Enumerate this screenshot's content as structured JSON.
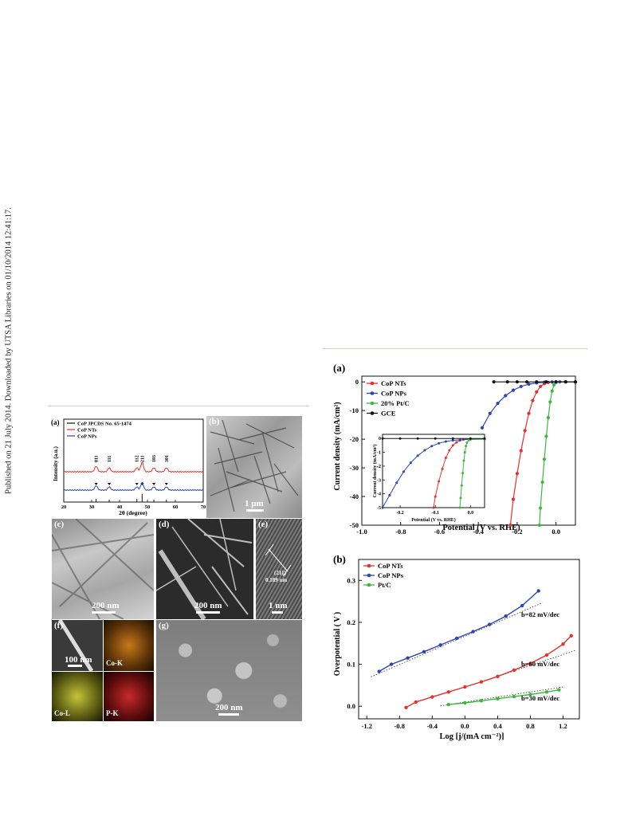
{
  "side_note": "Published on 21 July 2014. Downloaded by UTSA Libraries on 01/10/2014 12:41:17.",
  "figure1": {
    "xrd": {
      "tag": "(a)",
      "legend": [
        "CoP JPCDS No. 65-1474",
        "CoP NTs",
        "CoP NPs"
      ],
      "ylabel": "Intensity (a.u.)",
      "xlabel": "2θ (degree)",
      "xticks": [
        "20",
        "30",
        "40",
        "50",
        "60",
        "70"
      ],
      "peaks": [
        "011",
        "111",
        "112",
        "211",
        "103",
        "301"
      ]
    },
    "panels": {
      "b": {
        "tag": "(b)",
        "scale": "1 μm"
      },
      "c": {
        "tag": "(c)",
        "scale": "200 nm"
      },
      "d": {
        "tag": "(d)",
        "scale": "200 nm"
      },
      "e": {
        "tag": "(e)",
        "scale": "1 nm",
        "lattice1": "(211)",
        "lattice2": "0.189 nm"
      },
      "f": {
        "tag": "(f)",
        "scale": "100 nm",
        "map1": "Co-K",
        "map2": "Co-L",
        "map3": "P-K"
      },
      "g": {
        "tag": "(g)",
        "scale": "200 nm"
      }
    }
  },
  "figure2": {
    "lsv": {
      "tag": "(a)",
      "ylabel": "Current density (mA/cm²)",
      "xlabel": "Potential (V vs. RHE)",
      "xticks": [
        "-1.0",
        "-0.8",
        "-0.6",
        "-0.4",
        "-0.2",
        "0.0"
      ],
      "yticks": [
        "0",
        "-10",
        "-20",
        "-30",
        "-40",
        "-50"
      ],
      "legend": [
        "CoP NTs",
        "CoP NPs",
        "20% Pt/C",
        "GCE"
      ],
      "inset": {
        "ylabel": "Current density (mA/cm²)",
        "xlabel": "Potential (V vs. RHE)",
        "xticks": [
          "-0.2",
          "-0.1",
          "0.0"
        ],
        "yticks": [
          "0",
          "-1",
          "-2",
          "-3",
          "-4",
          "-5"
        ]
      }
    },
    "tafel": {
      "tag": "(b)",
      "ylabel": "Overpotential ( V )",
      "xlabel": "Log [j/(mA cm⁻²)]",
      "xticks": [
        "-1.2",
        "-0.8",
        "-0.4",
        "0.0",
        "0.4",
        "0.8",
        "1.2"
      ],
      "yticks": [
        "0.0",
        "0.1",
        "0.2",
        "0.3"
      ],
      "legend": [
        "CoP NTs",
        "CoP NPs",
        "Pt/C"
      ],
      "slopes": [
        "b=82 mV/dec",
        "b=60 mV/dec",
        "b=30 mV/dec"
      ]
    }
  },
  "colors": {
    "red": "#e8302a",
    "blue": "#2d44b8",
    "green": "#3cb83c",
    "black": "#111111"
  },
  "chart_data": [
    {
      "type": "line",
      "title": "",
      "xlabel": "Potential (V vs. RHE)",
      "ylabel": "Current density (mA/cm2)",
      "xlim": [
        -1.0,
        0.1
      ],
      "ylim": [
        -50,
        2
      ],
      "series": [
        {
          "name": "CoP NTs",
          "x": [
            -0.235,
            -0.22,
            -0.2,
            -0.18,
            -0.16,
            -0.14,
            -0.12,
            -0.1,
            -0.08,
            -0.06,
            -0.04,
            0.0,
            0.05,
            0.1
          ],
          "y": [
            -50,
            -41,
            -32,
            -24,
            -17,
            -11,
            -6.5,
            -3.5,
            -1.6,
            -0.6,
            -0.2,
            0,
            0,
            0
          ]
        },
        {
          "name": "CoP NPs",
          "x": [
            -0.38,
            -0.34,
            -0.3,
            -0.26,
            -0.22,
            -0.18,
            -0.14,
            -0.1,
            -0.06,
            -0.02,
            0.02,
            0.1
          ],
          "y": [
            -16,
            -11,
            -7.5,
            -4.8,
            -2.9,
            -1.6,
            -0.8,
            -0.35,
            -0.12,
            -0.03,
            0,
            0
          ]
        },
        {
          "name": "20% Pt/C",
          "x": [
            -0.085,
            -0.08,
            -0.07,
            -0.06,
            -0.05,
            -0.04,
            -0.03,
            -0.02,
            -0.01,
            0.0,
            0.05,
            0.1
          ],
          "y": [
            -50,
            -44,
            -35,
            -27,
            -19,
            -12.5,
            -7,
            -3.2,
            -1,
            -0.2,
            0,
            0
          ]
        },
        {
          "name": "GCE",
          "x": [
            -0.32,
            -0.25,
            -0.2,
            -0.15,
            -0.1,
            -0.05,
            0.0,
            0.05,
            0.1
          ],
          "y": [
            0,
            0,
            0,
            0,
            0,
            0,
            0,
            0,
            0
          ]
        }
      ]
    },
    {
      "type": "line",
      "title": "",
      "xlabel": "Potential (V vs. RHE)",
      "ylabel": "Current density (mA/cm2)",
      "xlim": [
        -0.25,
        0.04
      ],
      "ylim": [
        -5,
        0.3
      ],
      "series": [
        {
          "name": "CoP NTs",
          "x": [
            -0.105,
            -0.1,
            -0.09,
            -0.08,
            -0.07,
            -0.06,
            -0.05,
            -0.04,
            -0.03,
            -0.02,
            0.0,
            0.04
          ],
          "y": [
            -5,
            -4.2,
            -3.1,
            -2.2,
            -1.4,
            -0.85,
            -0.5,
            -0.28,
            -0.15,
            -0.08,
            -0.03,
            -0.02
          ]
        },
        {
          "name": "CoP NPs",
          "x": [
            -0.25,
            -0.23,
            -0.21,
            -0.19,
            -0.17,
            -0.15,
            -0.13,
            -0.11,
            -0.09,
            -0.07,
            -0.05,
            -0.03,
            0.0,
            0.04
          ],
          "y": [
            -5,
            -4.1,
            -3.2,
            -2.4,
            -1.75,
            -1.25,
            -0.85,
            -0.55,
            -0.35,
            -0.22,
            -0.14,
            -0.1,
            -0.07,
            -0.05
          ]
        },
        {
          "name": "20% Pt/C",
          "x": [
            -0.03,
            -0.028,
            -0.025,
            -0.022,
            -0.019,
            -0.016,
            -0.013,
            -0.01,
            -0.005,
            0.0,
            0.04
          ],
          "y": [
            -5,
            -4.3,
            -3.4,
            -2.5,
            -1.6,
            -1.0,
            -0.55,
            -0.3,
            -0.12,
            -0.06,
            -0.04
          ]
        },
        {
          "name": "GCE",
          "x": [
            -0.25,
            -0.2,
            -0.15,
            -0.1,
            -0.05,
            0.0,
            0.04
          ],
          "y": [
            0,
            0,
            0,
            0,
            0,
            0,
            0
          ]
        }
      ]
    },
    {
      "type": "line",
      "title": "",
      "xlabel": "Log [j/(mA cm-2)]",
      "ylabel": "Overpotential (V)",
      "xlim": [
        -1.3,
        1.4
      ],
      "ylim": [
        -0.03,
        0.35
      ],
      "series": [
        {
          "name": "CoP NPs",
          "x": [
            -1.05,
            -0.9,
            -0.7,
            -0.5,
            -0.3,
            -0.1,
            0.1,
            0.3,
            0.5,
            0.7,
            0.9
          ],
          "y": [
            0.083,
            0.1,
            0.115,
            0.13,
            0.146,
            0.162,
            0.178,
            0.195,
            0.215,
            0.24,
            0.275
          ]
        },
        {
          "name": "CoP NTs",
          "x": [
            -0.72,
            -0.6,
            -0.4,
            -0.2,
            0.0,
            0.2,
            0.4,
            0.6,
            0.8,
            1.0,
            1.2,
            1.3
          ],
          "y": [
            -0.003,
            0.01,
            0.022,
            0.034,
            0.046,
            0.058,
            0.071,
            0.086,
            0.102,
            0.122,
            0.148,
            0.168
          ]
        },
        {
          "name": "Pt/C",
          "x": [
            -0.2,
            0.0,
            0.2,
            0.4,
            0.6,
            0.8,
            1.0,
            1.15
          ],
          "y": [
            0.004,
            0.008,
            0.013,
            0.018,
            0.023,
            0.028,
            0.034,
            0.039
          ]
        }
      ]
    }
  ]
}
